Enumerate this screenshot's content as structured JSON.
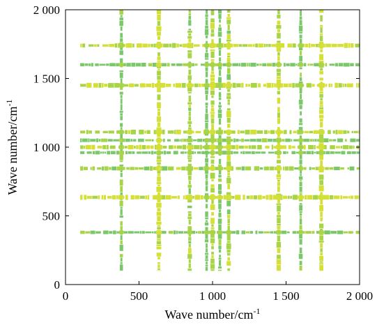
{
  "chart_data": {
    "type": "heatmap",
    "title": "",
    "xlabel": "Wave number/cm",
    "ylabel": "Wave number/cm",
    "unit_superscript": "-1",
    "xlim": [
      0,
      2000
    ],
    "ylim": [
      0,
      2000
    ],
    "x_ticks": [
      0,
      500,
      1000,
      1500,
      2000
    ],
    "y_ticks": [
      0,
      500,
      1000,
      1500,
      2000
    ],
    "x_tick_labels": [
      "0",
      "500",
      "1 000",
      "1 500",
      "2 000"
    ],
    "y_tick_labels": [
      "0",
      "500",
      "1 000",
      "1 500",
      "2 000"
    ],
    "data_range": [
      100,
      2000
    ],
    "correlation_bands": [
      {
        "wavenumber": 380,
        "strength": 0.6
      },
      {
        "wavenumber": 635,
        "strength": 0.95
      },
      {
        "wavenumber": 845,
        "strength": 0.75
      },
      {
        "wavenumber": 960,
        "strength": 0.55
      },
      {
        "wavenumber": 1000,
        "strength": 0.85
      },
      {
        "wavenumber": 1050,
        "strength": 0.6
      },
      {
        "wavenumber": 1110,
        "strength": 0.8
      },
      {
        "wavenumber": 1450,
        "strength": 0.9
      },
      {
        "wavenumber": 1600,
        "strength": 0.6
      },
      {
        "wavenumber": 1740,
        "strength": 0.9
      }
    ],
    "colors": {
      "weak": "#7ac86a",
      "medium": "#a8d448",
      "strong": "#d4e038"
    },
    "grid": false,
    "legend": "none"
  }
}
